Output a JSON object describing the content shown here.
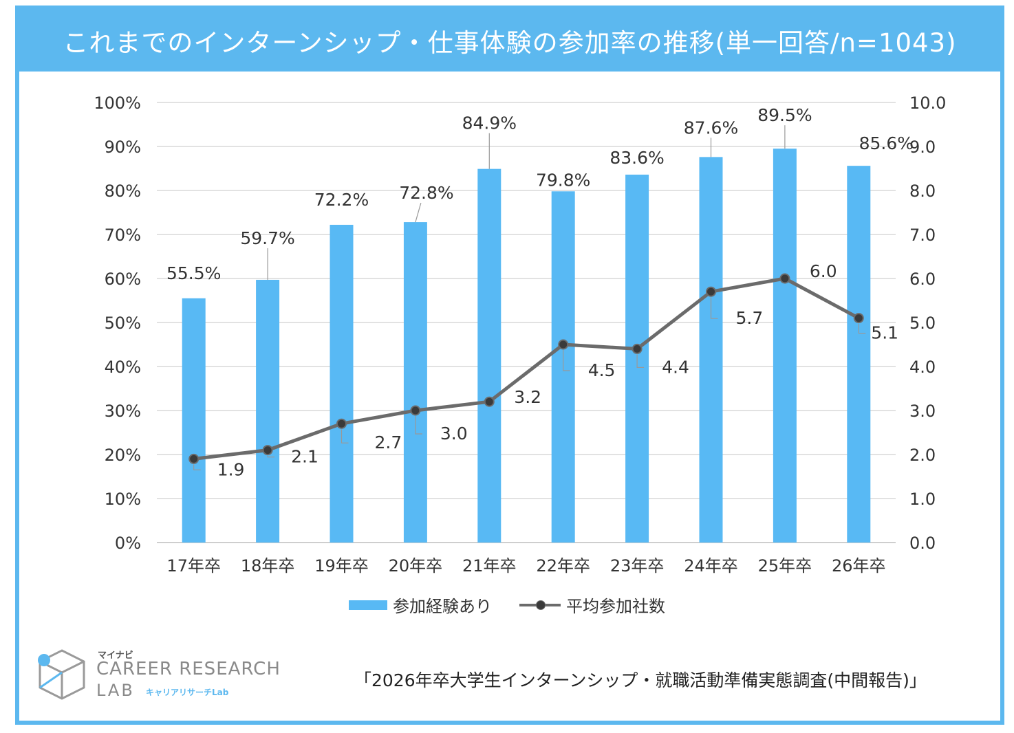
{
  "title": "これまでのインターンシップ・仕事体験の参加率の推移(単一回答/n=1043)",
  "chart_data": {
    "type": "bar",
    "title": "これまでのインターンシップ・仕事体験の参加率の推移(単一回答/n=1043)",
    "categories": [
      "17年卒",
      "18年卒",
      "19年卒",
      "20年卒",
      "21年卒",
      "22年卒",
      "23年卒",
      "24年卒",
      "25年卒",
      "26年卒"
    ],
    "series": [
      {
        "name": "参加経験あり",
        "type": "bar",
        "axis": "left",
        "color": "#58b9f4",
        "values": [
          55.5,
          59.7,
          72.2,
          72.8,
          84.9,
          79.8,
          83.6,
          87.6,
          89.5,
          85.6
        ],
        "labels": [
          "55.5%",
          "59.7%",
          "72.2%",
          "72.8%",
          "84.9%",
          "79.8%",
          "83.6%",
          "87.6%",
          "89.5%",
          "85.6%"
        ]
      },
      {
        "name": "平均参加社数",
        "type": "line",
        "axis": "right",
        "color": "#6b6b6b",
        "values": [
          1.9,
          2.1,
          2.7,
          3.0,
          3.2,
          4.5,
          4.4,
          5.7,
          6.0,
          5.1
        ],
        "labels": [
          "1.9",
          "2.1",
          "2.7",
          "3.0",
          "3.2",
          "4.5",
          "4.4",
          "5.7",
          "6.0",
          "5.1"
        ]
      }
    ],
    "y_left": {
      "range": [
        0,
        100
      ],
      "ticks": [
        "0%",
        "10%",
        "20%",
        "30%",
        "40%",
        "50%",
        "60%",
        "70%",
        "80%",
        "90%",
        "100%"
      ]
    },
    "y_right": {
      "range": [
        0,
        10
      ],
      "ticks": [
        "0.0",
        "1.0",
        "2.0",
        "3.0",
        "4.0",
        "5.0",
        "6.0",
        "7.0",
        "8.0",
        "9.0",
        "10.0"
      ]
    },
    "grid": true,
    "legend": "bottom"
  },
  "legend": {
    "bar_label": "参加経験あり",
    "line_label": "平均参加社数"
  },
  "logo": {
    "brand": "マイナビ",
    "line1": "CAREER RESEARCH",
    "line2": "LAB",
    "line2_sub": "キャリアリサーチLab"
  },
  "source": "「2026年卒大学生インターンシップ・就職活動準備実態調査(中間報告)」"
}
